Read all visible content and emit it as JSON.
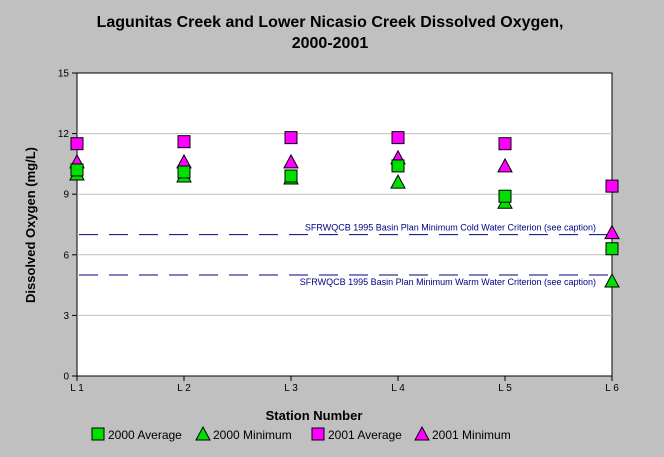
{
  "chart_data": {
    "type": "scatter",
    "title": [
      "Lagunitas Creek and Lower Nicasio Creek Dissolved Oxygen,",
      "2000-2001"
    ],
    "xlabel": "Station Number",
    "ylabel": "Dissolved Oxygen (mg/L)",
    "categories": [
      "L 1",
      "L 2",
      "L 3",
      "L 4",
      "L 5",
      "L 6"
    ],
    "ylim": [
      0,
      15
    ],
    "yticks": [
      0,
      3,
      6,
      9,
      12,
      15
    ],
    "grid": "horizontal",
    "series": [
      {
        "name": "2000 Average",
        "marker": "square",
        "color": "#00e000",
        "values": [
          10.2,
          10.1,
          9.9,
          10.4,
          8.9,
          null
        ]
      },
      {
        "name": "2000 Minimum",
        "marker": "triangle",
        "color": "#00e000",
        "values": [
          10.0,
          9.9,
          9.8,
          9.6,
          8.6,
          4.7
        ]
      },
      {
        "name": "2001 Average",
        "marker": "square",
        "color": "#ff00ff",
        "values": [
          11.5,
          11.6,
          11.8,
          11.8,
          11.5,
          9.4
        ]
      },
      {
        "name": "2001 Minimum",
        "marker": "triangle",
        "color": "#ff00ff",
        "values": [
          10.6,
          10.6,
          10.6,
          10.8,
          10.4,
          7.1
        ]
      }
    ],
    "extra_points": [
      {
        "series": "2000 Average",
        "category": "L 6",
        "value": 6.3
      }
    ],
    "reference_lines": [
      {
        "value": 7.0,
        "label": "SFRWQCB 1995 Basin Plan Minimum Cold Water Criterion (see caption)",
        "color": "#000080"
      },
      {
        "value": 5.0,
        "label": "SFRWQCB 1995 Basin Plan Minimum Warm Water Criterion (see caption)",
        "color": "#000080"
      }
    ],
    "legend_position": "bottom"
  }
}
